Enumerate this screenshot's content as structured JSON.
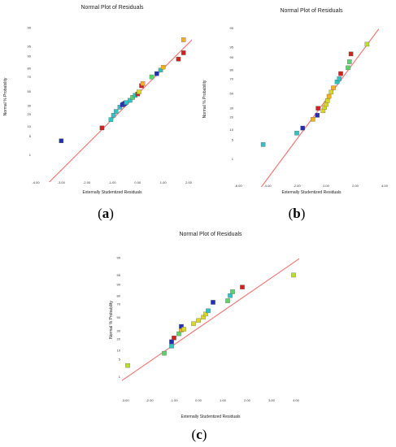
{
  "captions": {
    "a": "a",
    "b": "b",
    "c": "c"
  },
  "chart_data": [
    {
      "type": "scatter",
      "title": "Normal Plot of Residuals",
      "xlabel": "Externally Studentized Residuals",
      "ylabel": "Normal % Probability",
      "xlim": [
        -4.0,
        2.0
      ],
      "xticks": [
        "-4.00",
        "-3.00",
        "-2.00",
        "-1.00",
        "0.00",
        "1.00",
        "2.00"
      ],
      "yticks": [
        1,
        5,
        10,
        20,
        30,
        50,
        70,
        80,
        90,
        95,
        99
      ],
      "fit_line": [
        [
          -3.9,
          0.01
        ],
        [
          2.2,
          97.4
        ]
      ],
      "line_color": "#f27a7a",
      "points": [
        {
          "x": -3.0,
          "p": 3.5,
          "color": "#1f2fb8"
        },
        {
          "x": -1.4,
          "p": 9.0,
          "color": "#d42020"
        },
        {
          "x": -1.05,
          "p": 15.0,
          "color": "#2ec4c4"
        },
        {
          "x": -0.95,
          "p": 19.0,
          "color": "#2ec4c4"
        },
        {
          "x": -0.85,
          "p": 23.0,
          "color": "#2ec4c4"
        },
        {
          "x": -0.7,
          "p": 28.0,
          "color": "#2ec4c4"
        },
        {
          "x": -0.6,
          "p": 31.0,
          "color": "#1f2fb8"
        },
        {
          "x": -0.55,
          "p": 32.0,
          "color": "#1f2fb8"
        },
        {
          "x": -0.5,
          "p": 33.0,
          "color": "#1f2fb8"
        },
        {
          "x": -0.45,
          "p": 34.0,
          "color": "#2ec4c4"
        },
        {
          "x": -0.3,
          "p": 37.0,
          "color": "#2ec4c4"
        },
        {
          "x": -0.2,
          "p": 41.0,
          "color": "#5ad36b"
        },
        {
          "x": -0.1,
          "p": 44.0,
          "color": "#2ec4c4"
        },
        {
          "x": 0.0,
          "p": 46.0,
          "color": "#d42020"
        },
        {
          "x": 0.05,
          "p": 49.0,
          "color": "#d8d820"
        },
        {
          "x": 0.15,
          "p": 58.0,
          "color": "#d42020"
        },
        {
          "x": 0.2,
          "p": 61.0,
          "color": "#f2b020"
        },
        {
          "x": 0.55,
          "p": 70.0,
          "color": "#5ad36b"
        },
        {
          "x": 0.75,
          "p": 74.0,
          "color": "#1f2fb8"
        },
        {
          "x": 0.9,
          "p": 78.0,
          "color": "#2ec4c4"
        },
        {
          "x": 1.0,
          "p": 81.0,
          "color": "#f2b020"
        },
        {
          "x": 1.6,
          "p": 88.0,
          "color": "#d42020"
        },
        {
          "x": 1.8,
          "p": 92.0,
          "color": "#d42020"
        },
        {
          "x": 1.8,
          "p": 97.0,
          "color": "#f2b020"
        }
      ]
    },
    {
      "type": "scatter",
      "title": "Normal Plot of Residuals",
      "xlabel": "Externally Studentized Residuals",
      "ylabel": "Normal % Probability",
      "xlim": [
        -6.0,
        4.0
      ],
      "xticks": [
        "-6.00",
        "-4.00",
        "-2.00",
        "0.00",
        "2.00",
        "4.00"
      ],
      "yticks": [
        1,
        5,
        10,
        20,
        30,
        50,
        70,
        80,
        90,
        95,
        99
      ],
      "fit_line": [
        [
          -5.0,
          0.01
        ],
        [
          3.6,
          98.9
        ]
      ],
      "line_color": "#f27a7a",
      "points": [
        {
          "x": -4.3,
          "p": 3.5,
          "color": "#2ec4c4"
        },
        {
          "x": -2.0,
          "p": 8.0,
          "color": "#2ec4c4"
        },
        {
          "x": -1.6,
          "p": 11.0,
          "color": "#1f2fb8"
        },
        {
          "x": -0.9,
          "p": 18.0,
          "color": "#f2b020"
        },
        {
          "x": -0.6,
          "p": 22.0,
          "color": "#1f2fb8"
        },
        {
          "x": -0.55,
          "p": 30.0,
          "color": "#d42020"
        },
        {
          "x": -0.2,
          "p": 27.0,
          "color": "#d8d820"
        },
        {
          "x": -0.1,
          "p": 31.0,
          "color": "#d8d820"
        },
        {
          "x": 0.0,
          "p": 35.0,
          "color": "#d8d820"
        },
        {
          "x": 0.1,
          "p": 40.0,
          "color": "#d8d820"
        },
        {
          "x": 0.2,
          "p": 46.0,
          "color": "#f2b020"
        },
        {
          "x": 0.35,
          "p": 52.0,
          "color": "#d8d820"
        },
        {
          "x": 0.5,
          "p": 58.0,
          "color": "#f2b020"
        },
        {
          "x": 0.75,
          "p": 66.0,
          "color": "#2ec4c4"
        },
        {
          "x": 0.9,
          "p": 70.0,
          "color": "#2ec4c4"
        },
        {
          "x": 1.0,
          "p": 76.0,
          "color": "#d42020"
        },
        {
          "x": 1.5,
          "p": 82.0,
          "color": "#5ad36b"
        },
        {
          "x": 1.6,
          "p": 87.0,
          "color": "#5ad36b"
        },
        {
          "x": 1.7,
          "p": 92.0,
          "color": "#d42020"
        },
        {
          "x": 2.8,
          "p": 96.0,
          "color": "#b8e020"
        }
      ]
    },
    {
      "type": "scatter",
      "title": "Normal Plot of Residuals",
      "xlabel": "Externally Studentized Residuals",
      "ylabel": "Normal % Probability",
      "xlim": [
        -3.0,
        4.0
      ],
      "xticks": [
        "-3.00",
        "-2.00",
        "-1.00",
        "0.00",
        "1.00",
        "2.00",
        "3.00",
        "4.00"
      ],
      "yticks": [
        1,
        5,
        10,
        20,
        30,
        50,
        70,
        80,
        90,
        95,
        99
      ],
      "fit_line": [
        [
          -3.3,
          0.5
        ],
        [
          4.2,
          99.0
        ]
      ],
      "line_color": "#f27a7a",
      "points": [
        {
          "x": -2.9,
          "p": 3.0,
          "color": "#b8e020"
        },
        {
          "x": -1.4,
          "p": 8.0,
          "color": "#5ad36b"
        },
        {
          "x": -1.1,
          "p": 13.0,
          "color": "#2ec4c4"
        },
        {
          "x": -1.1,
          "p": 17.0,
          "color": "#1f2fb8"
        },
        {
          "x": -1.0,
          "p": 21.0,
          "color": "#d42020"
        },
        {
          "x": -0.8,
          "p": 26.0,
          "color": "#5ad36b"
        },
        {
          "x": -0.7,
          "p": 31.0,
          "color": "#f2b020"
        },
        {
          "x": -0.7,
          "p": 36.0,
          "color": "#1f2fb8"
        },
        {
          "x": -0.6,
          "p": 32.0,
          "color": "#d8d820"
        },
        {
          "x": -0.2,
          "p": 40.0,
          "color": "#d8d820"
        },
        {
          "x": 0.0,
          "p": 45.0,
          "color": "#d8d820"
        },
        {
          "x": 0.2,
          "p": 50.0,
          "color": "#d8d820"
        },
        {
          "x": 0.3,
          "p": 55.0,
          "color": "#d8d820"
        },
        {
          "x": 0.4,
          "p": 60.0,
          "color": "#2ec4c4"
        },
        {
          "x": 0.6,
          "p": 72.0,
          "color": "#1f2fb8"
        },
        {
          "x": 1.2,
          "p": 74.0,
          "color": "#5ad36b"
        },
        {
          "x": 1.3,
          "p": 80.0,
          "color": "#2ec4c4"
        },
        {
          "x": 1.4,
          "p": 84.0,
          "color": "#5ad36b"
        },
        {
          "x": 1.8,
          "p": 88.0,
          "color": "#d42020"
        },
        {
          "x": 3.9,
          "p": 95.0,
          "color": "#b8e020"
        }
      ]
    }
  ]
}
